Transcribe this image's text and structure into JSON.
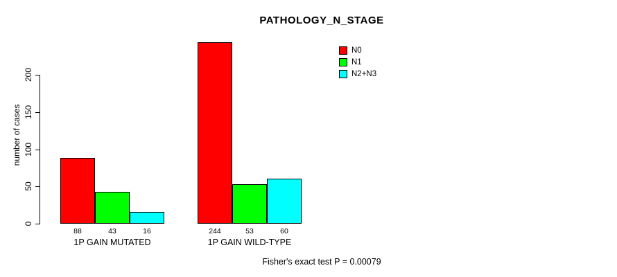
{
  "chart_data": {
    "type": "bar",
    "title": "PATHOLOGY_N_STAGE",
    "ylabel": "number of cases",
    "xlabel": "",
    "categories": [
      "1P GAIN MUTATED",
      "1P GAIN WILD-TYPE"
    ],
    "series": [
      {
        "name": "N0",
        "color": "#ff0000",
        "values": [
          88,
          244
        ]
      },
      {
        "name": "N1",
        "color": "#00ff00",
        "values": [
          43,
          53
        ]
      },
      {
        "name": "N2+N3",
        "color": "#00ffff",
        "values": [
          16,
          60
        ]
      }
    ],
    "bar_value_labels": [
      [
        88,
        43,
        16
      ],
      [
        244,
        53,
        60
      ]
    ],
    "yticks": [
      0,
      50,
      100,
      150,
      200
    ],
    "ylim": [
      0,
      244
    ],
    "grid": false,
    "legend_position": "top-right",
    "annotation": "Fisher's exact test P = 0.00079"
  }
}
